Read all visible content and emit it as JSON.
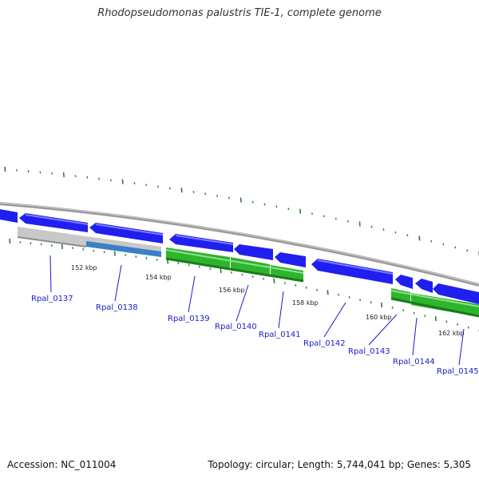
{
  "title": "Rhodopseudomonas palustris TIE-1, complete genome",
  "footer": {
    "accession": "Accession: NC_011004",
    "summary": "Topology: circular; Length: 5,744,041 bp; Genes: 5,305"
  },
  "colors": {
    "forward_gene": "#1f1ff0",
    "reverse_gene_blue": "#3a7fc8",
    "gray_gene": "#c4c4c4",
    "green_gene": "#2db52d",
    "backbone": "#8a8a8a",
    "tick": "#2a7f2a",
    "label": "#1a1acc"
  },
  "ticks": [
    {
      "label": "152 kbp"
    },
    {
      "label": "154 kbp"
    },
    {
      "label": "156 kbp"
    },
    {
      "label": "158 kbp"
    },
    {
      "label": "160 kbp"
    },
    {
      "label": "162 kbp"
    }
  ],
  "genes": [
    {
      "name": "Rpal_0137"
    },
    {
      "name": "Rpal_0138"
    },
    {
      "name": "Rpal_0139"
    },
    {
      "name": "Rpal_0140"
    },
    {
      "name": "Rpal_0141"
    },
    {
      "name": "Rpal_0142"
    },
    {
      "name": "Rpal_0143"
    },
    {
      "name": "Rpal_0144"
    },
    {
      "name": "Rpal_0145"
    }
  ]
}
